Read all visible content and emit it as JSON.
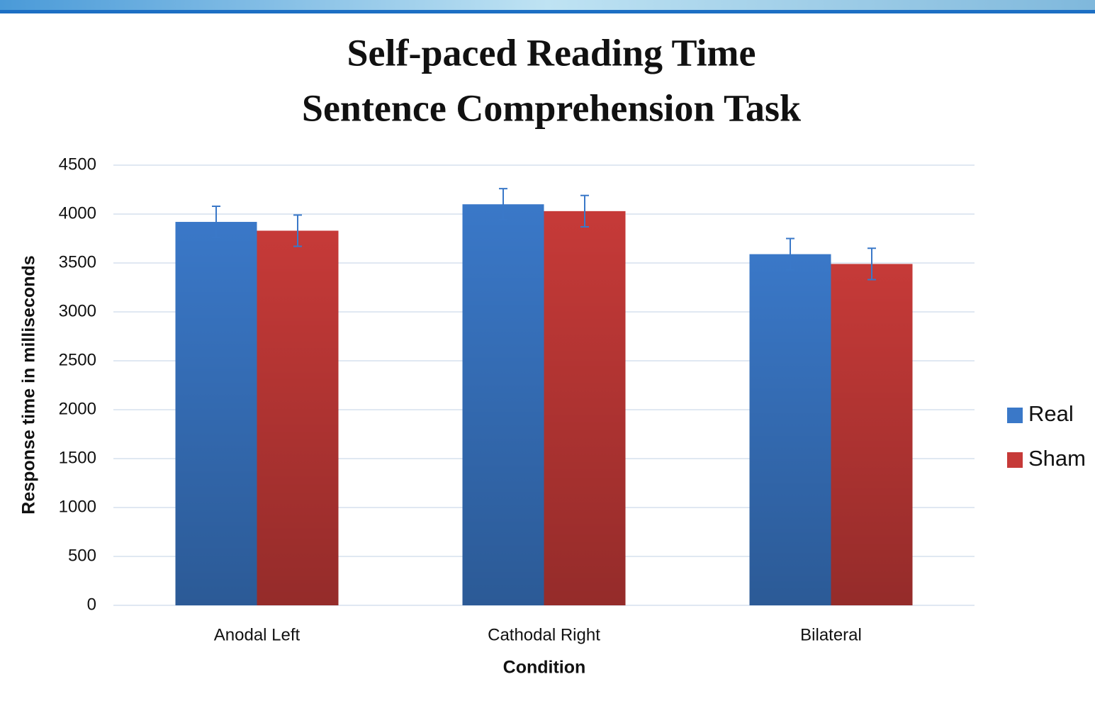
{
  "chart_data": {
    "type": "bar",
    "title": "Self-paced Reading Time",
    "subtitle": "Sentence Comprehension Task",
    "x_label": "Condition",
    "y_label": "Response time in milliseconds",
    "categories": [
      "Anodal Left",
      "Cathodal Right",
      "Bilateral"
    ],
    "series": [
      {
        "name": "Real",
        "color": "#3a78c8",
        "values": [
          3920,
          4100,
          3590
        ],
        "errors": [
          160,
          160,
          160
        ]
      },
      {
        "name": "Sham",
        "color": "#c63a38",
        "values": [
          3830,
          4030,
          3490
        ],
        "errors": [
          160,
          160,
          160
        ]
      }
    ],
    "ylim": [
      0,
      4500
    ],
    "yticks": [
      0,
      500,
      1000,
      1500,
      2000,
      2500,
      3000,
      3500,
      4000,
      4500
    ],
    "grid": true,
    "legend": "right"
  }
}
